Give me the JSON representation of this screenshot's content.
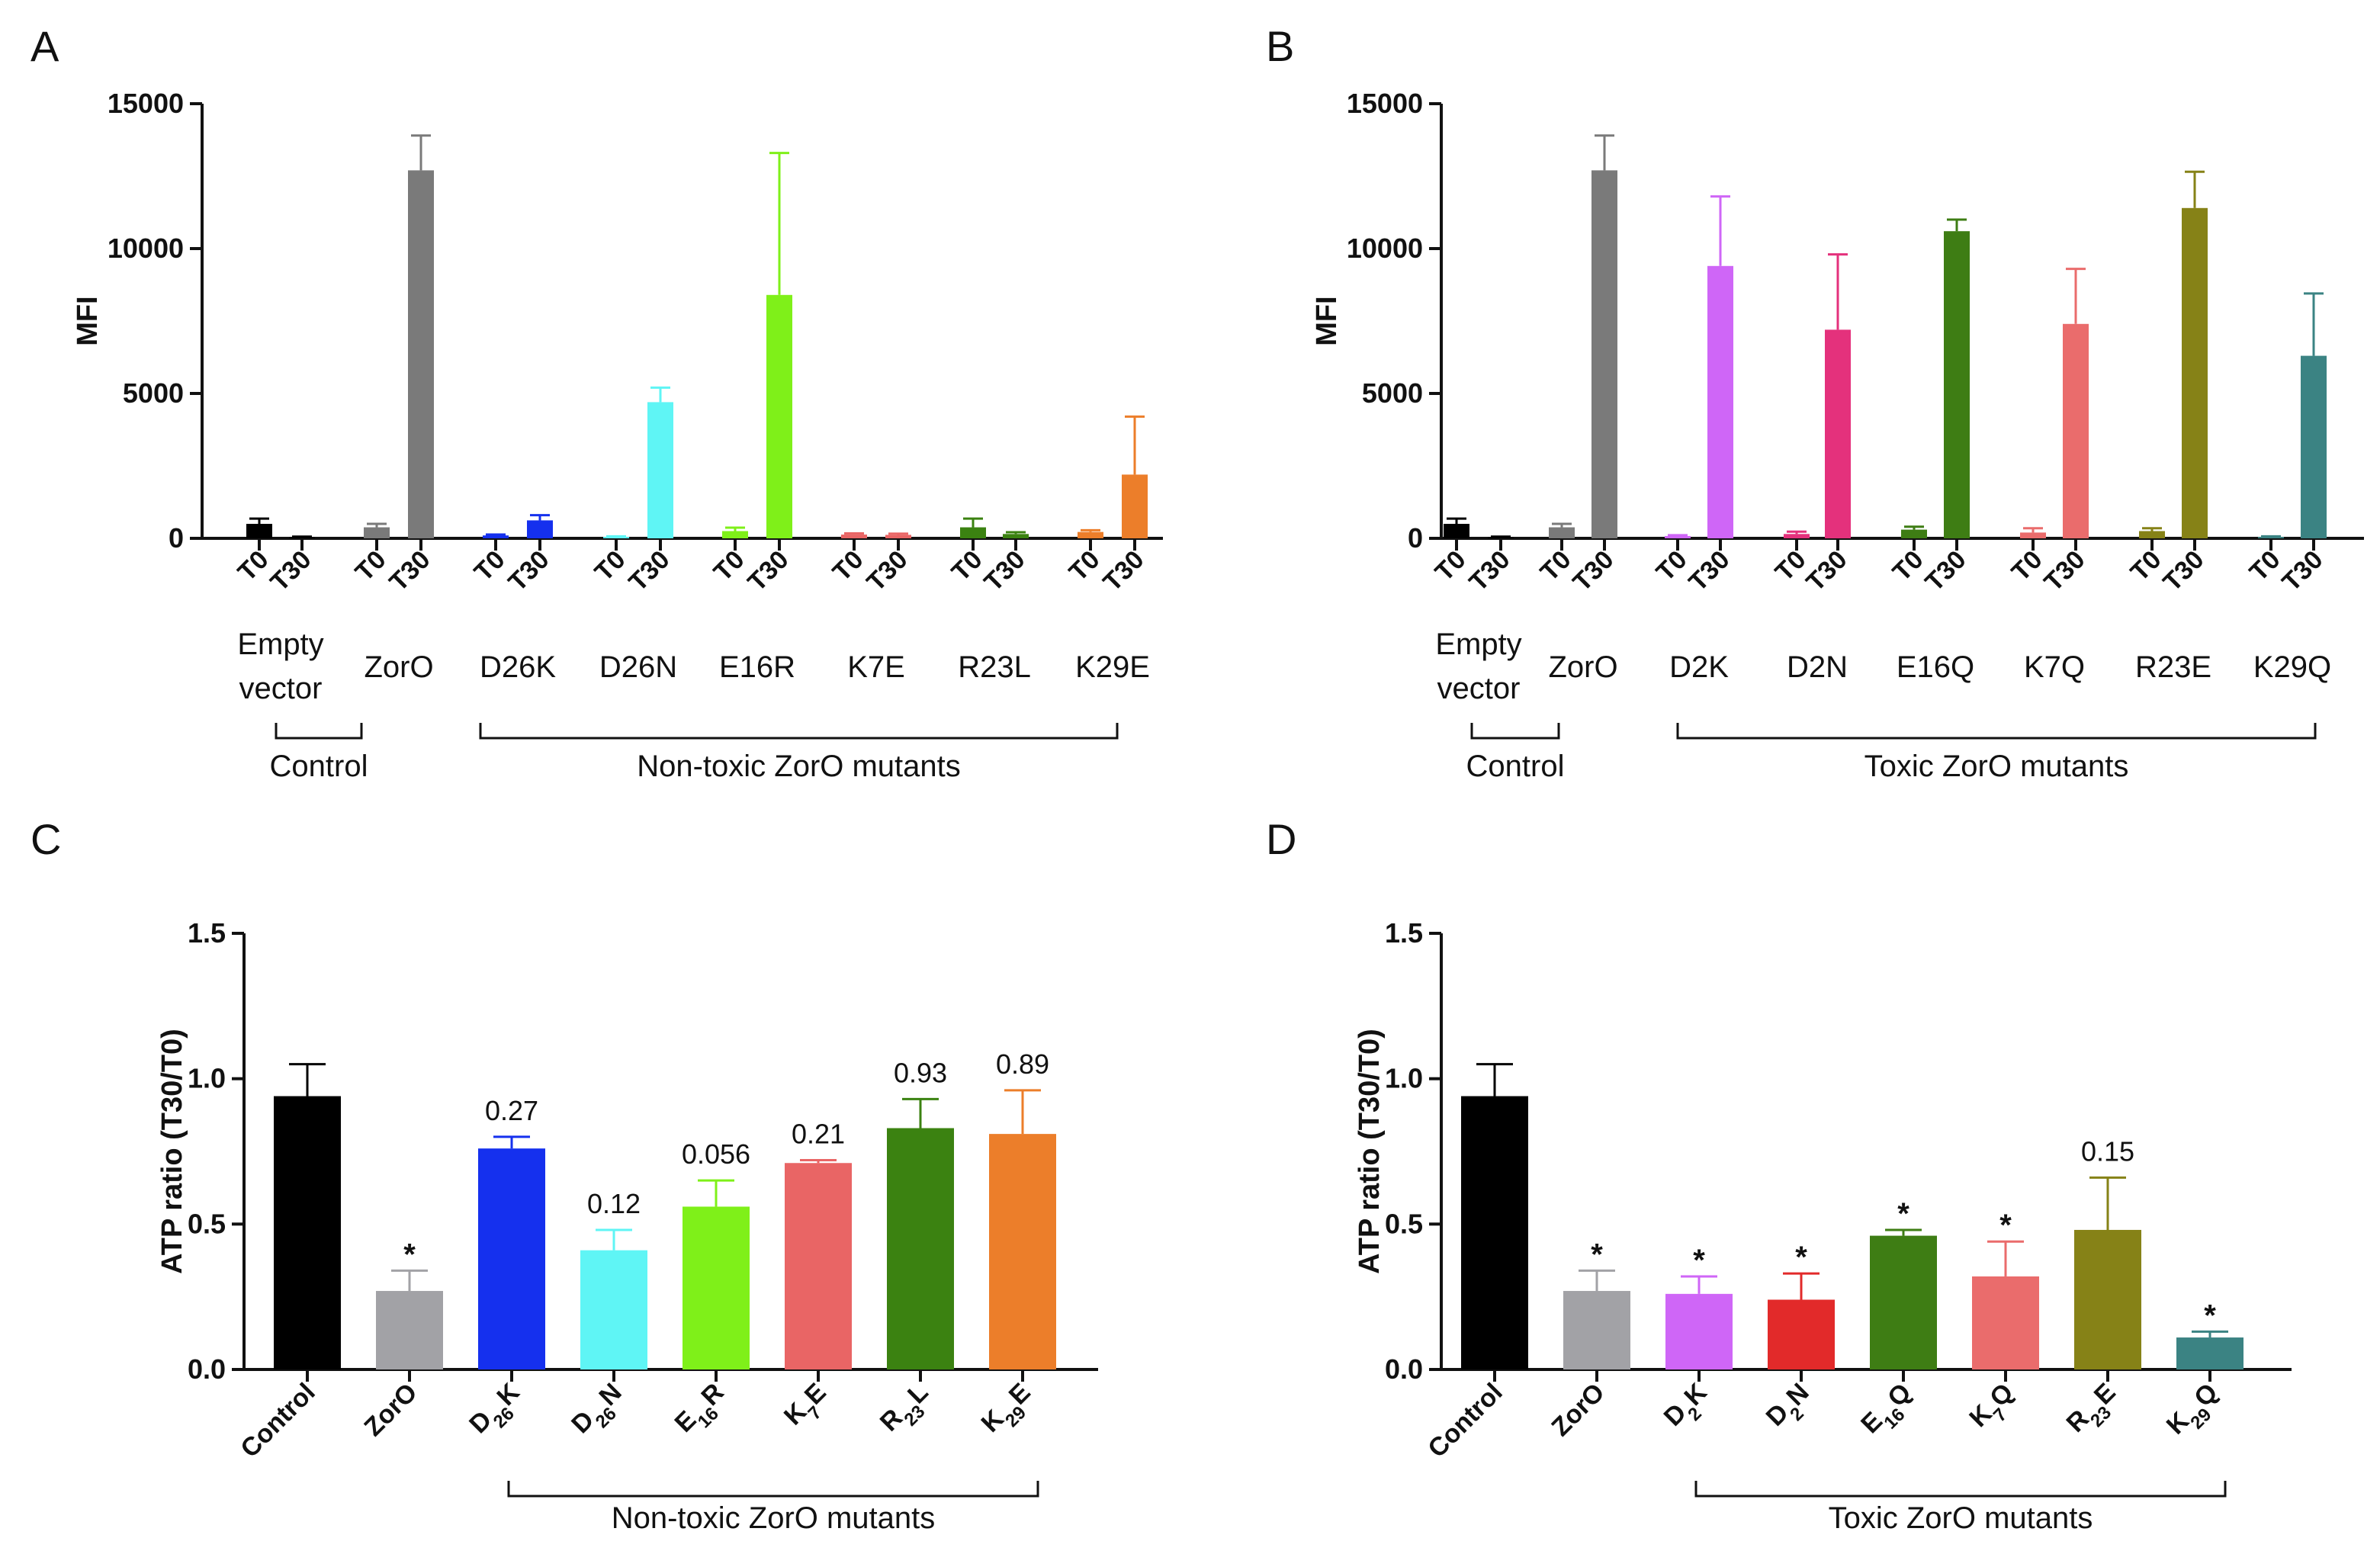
{
  "chart_data": [
    {
      "panel": "A",
      "type": "bar",
      "ylabel": "MFI",
      "ylim": [
        0,
        15000
      ],
      "yticks": [
        0,
        5000,
        10000,
        15000
      ],
      "timepoints": [
        "T0",
        "T30"
      ],
      "groups": [
        "Empty vector",
        "ZorO",
        "D26K",
        "D26N",
        "E16R",
        "K7E",
        "R23L",
        "K29E"
      ],
      "series": [
        {
          "group": "Empty vector",
          "color": "#000000",
          "values": [
            500,
            40
          ],
          "errors": [
            180,
            20
          ]
        },
        {
          "group": "ZorO",
          "color": "#7a7a7a",
          "values": [
            380,
            12700
          ],
          "errors": [
            120,
            1200
          ]
        },
        {
          "group": "D26K",
          "color": "#1530ee",
          "values": [
            100,
            620
          ],
          "errors": [
            30,
            180
          ]
        },
        {
          "group": "D26N",
          "color": "#5ff5f5",
          "values": [
            50,
            4700
          ],
          "errors": [
            20,
            500
          ]
        },
        {
          "group": "E16R",
          "color": "#7ff019",
          "values": [
            250,
            8400
          ],
          "errors": [
            120,
            4900
          ]
        },
        {
          "group": "K7E",
          "color": "#e96565",
          "values": [
            130,
            120
          ],
          "errors": [
            40,
            40
          ]
        },
        {
          "group": "R23L",
          "color": "#3b8211",
          "values": [
            380,
            150
          ],
          "errors": [
            300,
            60
          ]
        },
        {
          "group": "K29E",
          "color": "#ec7e2a",
          "values": [
            220,
            2200
          ],
          "errors": [
            60,
            2000
          ]
        }
      ],
      "brackets": [
        {
          "label": "Control",
          "from": 0,
          "to": 1
        },
        {
          "label": "Non-toxic ZorO mutants",
          "from": 2,
          "to": 7
        }
      ]
    },
    {
      "panel": "B",
      "type": "bar",
      "ylabel": "MFI",
      "ylim": [
        0,
        15000
      ],
      "yticks": [
        0,
        5000,
        10000,
        15000
      ],
      "timepoints": [
        "T0",
        "T30"
      ],
      "groups": [
        "Empty vector",
        "ZorO",
        "D2K",
        "D2N",
        "E16Q",
        "K7Q",
        "R23E",
        "K29Q"
      ],
      "series": [
        {
          "group": "Empty vector",
          "color": "#000000",
          "values": [
            500,
            40
          ],
          "errors": [
            180,
            20
          ]
        },
        {
          "group": "ZorO",
          "color": "#7a7a7a",
          "values": [
            380,
            12700
          ],
          "errors": [
            120,
            1200
          ]
        },
        {
          "group": "D2K",
          "color": "#cf66f7",
          "values": [
            80,
            9400
          ],
          "errors": [
            30,
            2400
          ]
        },
        {
          "group": "D2N",
          "color": "#e4317c",
          "values": [
            150,
            7200
          ],
          "errors": [
            80,
            2600
          ]
        },
        {
          "group": "E16Q",
          "color": "#3e7d14",
          "values": [
            300,
            10600
          ],
          "errors": [
            100,
            400
          ]
        },
        {
          "group": "K7Q",
          "color": "#ea6c6c",
          "values": [
            200,
            7400
          ],
          "errors": [
            150,
            1900
          ]
        },
        {
          "group": "R23E",
          "color": "#868217",
          "values": [
            250,
            11400
          ],
          "errors": [
            100,
            1250
          ]
        },
        {
          "group": "K29Q",
          "color": "#3b8383",
          "values": [
            50,
            6300
          ],
          "errors": [
            20,
            2150
          ]
        }
      ],
      "brackets": [
        {
          "label": "Control",
          "from": 0,
          "to": 1
        },
        {
          "label": "Toxic ZorO mutants",
          "from": 2,
          "to": 7
        }
      ]
    },
    {
      "panel": "C",
      "type": "bar",
      "ylabel": "ATP ratio (T30/T0)",
      "ylim": [
        0,
        1.5
      ],
      "yticks": [
        0.0,
        0.5,
        1.0,
        1.5
      ],
      "ytick_labels": [
        "0.0",
        "0.5",
        "1.0",
        "1.5"
      ],
      "categories": [
        {
          "base": "Control",
          "sub": "",
          "suf": ""
        },
        {
          "base": "ZorO",
          "sub": "",
          "suf": ""
        },
        {
          "base": "D",
          "sub": "26",
          "suf": "K"
        },
        {
          "base": "D",
          "sub": "26",
          "suf": "N"
        },
        {
          "base": "E",
          "sub": "16",
          "suf": "R"
        },
        {
          "base": "K",
          "sub": "7",
          "suf": "E"
        },
        {
          "base": "R",
          "sub": "23",
          "suf": "L"
        },
        {
          "base": "K",
          "sub": "29",
          "suf": "E"
        }
      ],
      "values": [
        0.94,
        0.27,
        0.76,
        0.41,
        0.56,
        0.71,
        0.83,
        0.81
      ],
      "errors": [
        0.11,
        0.07,
        0.04,
        0.07,
        0.09,
        0.01,
        0.1,
        0.15
      ],
      "colors": [
        "#000000",
        "#a2a2a6",
        "#1530ee",
        "#5ff5f5",
        "#7ff019",
        "#e96565",
        "#3b8211",
        "#ec7e2a"
      ],
      "annotations": [
        "",
        "*",
        "0.27",
        "0.12",
        "0.056",
        "0.21",
        "0.93",
        "0.89"
      ],
      "bracket": {
        "label": "Non-toxic ZorO mutants",
        "from": 2,
        "to": 7
      }
    },
    {
      "panel": "D",
      "type": "bar",
      "ylabel": "ATP ratio (T30/T0)",
      "ylim": [
        0,
        1.5
      ],
      "yticks": [
        0.0,
        0.5,
        1.0,
        1.5
      ],
      "ytick_labels": [
        "0.0",
        "0.5",
        "1.0",
        "1.5"
      ],
      "categories": [
        {
          "base": "Control",
          "sub": "",
          "suf": ""
        },
        {
          "base": "ZorO",
          "sub": "",
          "suf": ""
        },
        {
          "base": "D",
          "sub": "2",
          "suf": "K"
        },
        {
          "base": "D",
          "sub": "2",
          "suf": "N"
        },
        {
          "base": "E",
          "sub": "16",
          "suf": "Q"
        },
        {
          "base": "K",
          "sub": "7",
          "suf": "Q"
        },
        {
          "base": "R",
          "sub": "23",
          "suf": "E"
        },
        {
          "base": "K",
          "sub": "29",
          "suf": "Q"
        }
      ],
      "values": [
        0.94,
        0.27,
        0.26,
        0.24,
        0.46,
        0.32,
        0.48,
        0.11
      ],
      "errors": [
        0.11,
        0.07,
        0.06,
        0.09,
        0.02,
        0.12,
        0.18,
        0.02
      ],
      "colors": [
        "#000000",
        "#a2a2a6",
        "#cf66f7",
        "#e22a2a",
        "#3e7d14",
        "#ea6c6c",
        "#868217",
        "#3b8383"
      ],
      "annotations": [
        "",
        "*",
        "*",
        "*",
        "*",
        "*",
        "0.15",
        "*"
      ],
      "bracket": {
        "label": "Toxic ZorO mutants",
        "from": 2,
        "to": 7
      }
    }
  ]
}
